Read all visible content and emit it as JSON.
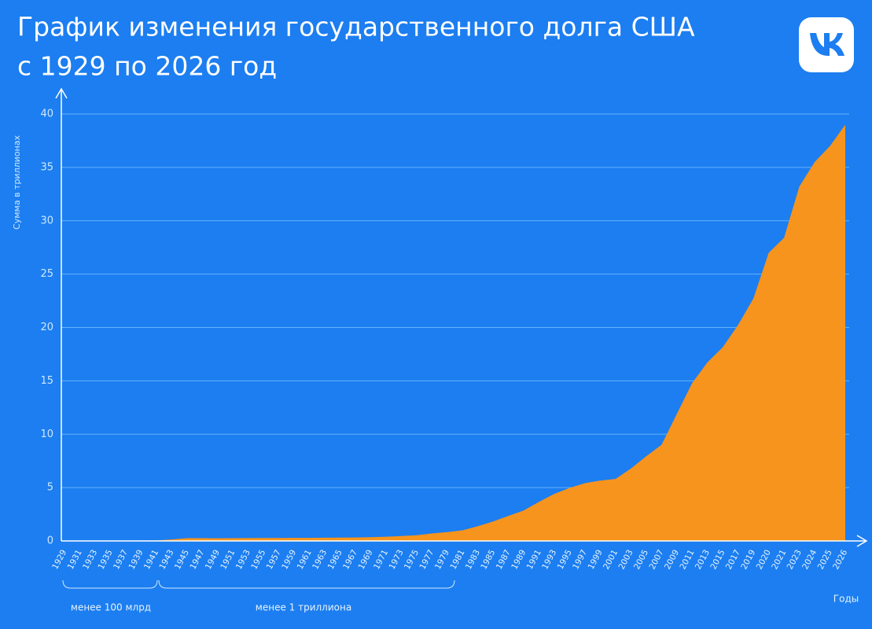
{
  "chart_data": {
    "type": "area",
    "title": "График изменения государственного долга США",
    "subtitle": "с 1929 по 2026 год",
    "y_label": "Сумма в триллионах",
    "x_label": "Годы",
    "annotations": [
      "менее 100 млрд",
      "менее 1 триллиона"
    ],
    "categories": [
      "1929",
      "1931",
      "1933",
      "1935",
      "1937",
      "1939",
      "1941",
      "1943",
      "1945",
      "1947",
      "1949",
      "1951",
      "1953",
      "1955",
      "1957",
      "1959",
      "1961",
      "1963",
      "1965",
      "1967",
      "1969",
      "1971",
      "1973",
      "1975",
      "1977",
      "1979",
      "1981",
      "1983",
      "1985",
      "1987",
      "1989",
      "1991",
      "1993",
      "1995",
      "1997",
      "1999",
      "2001",
      "2003",
      "2005",
      "2007",
      "2009",
      "2011",
      "2013",
      "2015",
      "2017",
      "2019",
      "2020",
      "2021",
      "2023",
      "2024",
      "2025",
      "2026"
    ],
    "values": [
      0.017,
      0.017,
      0.023,
      0.029,
      0.036,
      0.04,
      0.049,
      0.137,
      0.26,
      0.258,
      0.253,
      0.255,
      0.266,
      0.274,
      0.272,
      0.285,
      0.289,
      0.306,
      0.317,
      0.326,
      0.353,
      0.398,
      0.458,
      0.533,
      0.699,
      0.827,
      0.998,
      1.377,
      1.823,
      2.35,
      2.857,
      3.665,
      4.411,
      4.974,
      5.413,
      5.656,
      5.807,
      6.783,
      7.933,
      9.008,
      11.91,
      14.79,
      16.74,
      18.15,
      20.24,
      22.72,
      27.0,
      28.4,
      33.2,
      35.5,
      37.0,
      39.0
    ],
    "color": "#f7941d",
    "ylim": [
      0,
      40
    ],
    "yticks": [
      0,
      5,
      10,
      15,
      20,
      25,
      30,
      35,
      40
    ],
    "grid": true
  }
}
